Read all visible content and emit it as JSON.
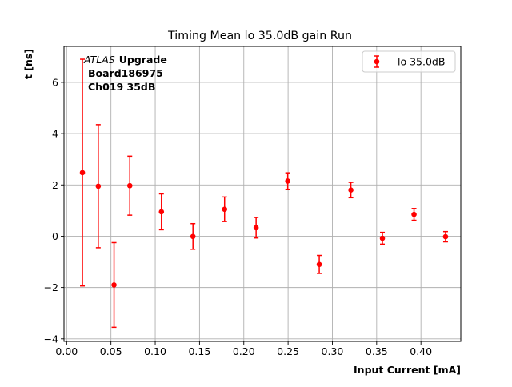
{
  "chart_data": {
    "type": "scatter",
    "title": "Timing Mean lo 35.0dB gain Run",
    "xlabel": "Input Current [mA]",
    "ylabel": "t [ns]",
    "xlim": [
      -0.003,
      0.445
    ],
    "ylim": [
      -4.1,
      7.4
    ],
    "x_ticks": [
      0.0,
      0.05,
      0.1,
      0.15,
      0.2,
      0.25,
      0.3,
      0.35,
      0.4
    ],
    "x_tick_labels": [
      "0.00",
      "0.05",
      "0.10",
      "0.15",
      "0.20",
      "0.25",
      "0.30",
      "0.35",
      "0.40"
    ],
    "y_ticks": [
      -4,
      -2,
      0,
      2,
      4,
      6
    ],
    "y_tick_labels": [
      "−4",
      "−2",
      "0",
      "2",
      "4",
      "6"
    ],
    "grid": true,
    "legend_position": "top-right",
    "annotation": {
      "atlas": "ATLAS",
      "upgrade": "Upgrade",
      "board": "Board186975",
      "channel": "Ch019 35dB"
    },
    "colors": {
      "series": "#ff0000",
      "grid": "#b0b0b0",
      "axes": "#000000"
    },
    "series": [
      {
        "name": "lo 35.0dB",
        "x": [
          0.0178,
          0.0357,
          0.0535,
          0.0713,
          0.107,
          0.1426,
          0.1783,
          0.2139,
          0.2496,
          0.2852,
          0.3209,
          0.3565,
          0.3922,
          0.4278
        ],
        "y": [
          2.48,
          1.95,
          -1.9,
          1.97,
          0.95,
          -0.01,
          1.05,
          0.33,
          2.15,
          -1.1,
          1.8,
          -0.08,
          0.85,
          -0.02
        ],
        "yerr": [
          4.42,
          2.4,
          1.65,
          1.15,
          0.7,
          0.5,
          0.48,
          0.4,
          0.32,
          0.35,
          0.3,
          0.23,
          0.23,
          0.2
        ]
      }
    ]
  }
}
